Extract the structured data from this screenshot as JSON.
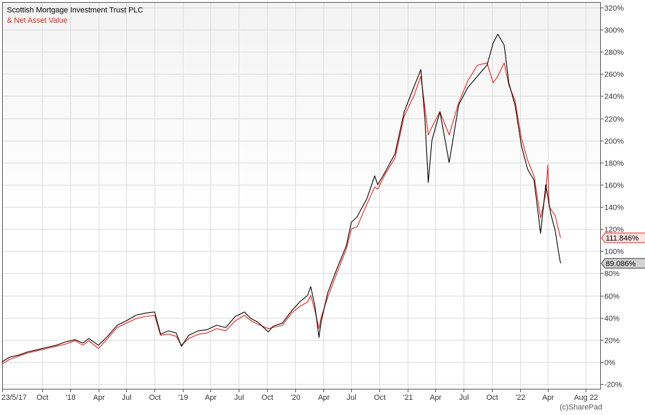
{
  "chart_data": {
    "type": "line",
    "title": "Scottish Mortgage Investment Trust PLC",
    "subtitle": "& Net Asset Value",
    "copyright": "(c)SharePad",
    "ylim": [
      -25,
      325
    ],
    "yticks": [
      -20,
      0,
      20,
      40,
      60,
      80,
      100,
      120,
      140,
      160,
      180,
      200,
      220,
      240,
      260,
      280,
      300,
      320
    ],
    "ytick_labels": [
      "-20%",
      "0%",
      "20%",
      "40%",
      "60%",
      "80%",
      "100%",
      "120%",
      "140%",
      "160%",
      "180%",
      "200%",
      "220%",
      "240%",
      "260%",
      "280%",
      "300%",
      "320%"
    ],
    "xlim": [
      "2017-05-23",
      "2022-09-20"
    ],
    "xticks": [
      "2017-05-23",
      "2017-10-01",
      "2018-01-01",
      "2018-04-01",
      "2018-07-01",
      "2018-10-01",
      "2019-01-01",
      "2019-04-01",
      "2019-07-01",
      "2019-10-01",
      "2020-01-01",
      "2020-04-01",
      "2020-07-01",
      "2020-10-01",
      "2021-01-01",
      "2021-04-01",
      "2021-07-01",
      "2021-10-01",
      "2022-01-01",
      "2022-04-01",
      "2022-08-01"
    ],
    "xtick_labels": [
      "23/5/17",
      "Oct",
      "'18",
      "Apr",
      "Jul",
      "Oct",
      "'19",
      "Apr",
      "Jul",
      "Oct",
      "'20",
      "Apr",
      "Jul",
      "Oct",
      "'21",
      "Apr",
      "Jul",
      "Oct",
      "'22",
      "Apr",
      "Aug 22"
    ],
    "grid": true,
    "series": [
      {
        "name": "Scottish Mortgage Investment Trust PLC",
        "color": "#000000",
        "last_label": "89.086%",
        "points": [
          [
            "2017-05-23",
            0
          ],
          [
            "2017-06-15",
            4
          ],
          [
            "2017-07-15",
            6
          ],
          [
            "2017-08-15",
            9
          ],
          [
            "2017-09-15",
            11
          ],
          [
            "2017-10-15",
            13
          ],
          [
            "2017-11-15",
            15
          ],
          [
            "2017-12-15",
            18
          ],
          [
            "2018-01-15",
            20
          ],
          [
            "2018-02-10",
            17
          ],
          [
            "2018-03-01",
            21
          ],
          [
            "2018-04-01",
            15
          ],
          [
            "2018-05-01",
            23
          ],
          [
            "2018-06-01",
            33
          ],
          [
            "2018-07-01",
            37
          ],
          [
            "2018-08-01",
            42
          ],
          [
            "2018-09-01",
            44
          ],
          [
            "2018-10-01",
            45
          ],
          [
            "2018-10-20",
            25
          ],
          [
            "2018-11-15",
            28
          ],
          [
            "2018-12-10",
            26
          ],
          [
            "2018-12-27",
            14
          ],
          [
            "2019-01-20",
            24
          ],
          [
            "2019-02-20",
            28
          ],
          [
            "2019-03-20",
            29
          ],
          [
            "2019-04-20",
            33
          ],
          [
            "2019-05-20",
            31
          ],
          [
            "2019-06-20",
            41
          ],
          [
            "2019-07-20",
            45
          ],
          [
            "2019-08-10",
            39
          ],
          [
            "2019-09-01",
            36
          ],
          [
            "2019-10-05",
            27
          ],
          [
            "2019-10-20",
            32
          ],
          [
            "2019-11-20",
            35
          ],
          [
            "2019-12-20",
            46
          ],
          [
            "2020-01-15",
            54
          ],
          [
            "2020-02-10",
            60
          ],
          [
            "2020-02-20",
            68
          ],
          [
            "2020-03-05",
            50
          ],
          [
            "2020-03-18",
            22
          ],
          [
            "2020-03-25",
            36
          ],
          [
            "2020-04-15",
            62
          ],
          [
            "2020-05-15",
            84
          ],
          [
            "2020-06-15",
            105
          ],
          [
            "2020-07-01",
            126
          ],
          [
            "2020-07-20",
            131
          ],
          [
            "2020-08-20",
            147
          ],
          [
            "2020-09-15",
            168
          ],
          [
            "2020-09-25",
            160
          ],
          [
            "2020-10-20",
            172
          ],
          [
            "2020-11-20",
            188
          ],
          [
            "2020-12-20",
            226
          ],
          [
            "2021-01-20",
            248
          ],
          [
            "2021-02-12",
            264
          ],
          [
            "2021-02-25",
            220
          ],
          [
            "2021-03-08",
            162
          ],
          [
            "2021-03-20",
            200
          ],
          [
            "2021-04-15",
            226
          ],
          [
            "2021-05-15",
            180
          ],
          [
            "2021-06-15",
            232
          ],
          [
            "2021-07-15",
            248
          ],
          [
            "2021-08-15",
            258
          ],
          [
            "2021-09-15",
            268
          ],
          [
            "2021-10-05",
            288
          ],
          [
            "2021-10-20",
            296
          ],
          [
            "2021-11-10",
            286
          ],
          [
            "2021-11-25",
            252
          ],
          [
            "2021-12-15",
            232
          ],
          [
            "2022-01-05",
            195
          ],
          [
            "2022-01-25",
            174
          ],
          [
            "2022-02-15",
            164
          ],
          [
            "2022-03-08",
            116
          ],
          [
            "2022-03-25",
            160
          ],
          [
            "2022-04-10",
            134
          ],
          [
            "2022-04-25",
            118
          ],
          [
            "2022-05-05",
            100
          ],
          [
            "2022-05-12",
            89
          ]
        ]
      },
      {
        "name": "Net Asset Value",
        "color": "#e8201e",
        "last_label": "111.846%",
        "points": [
          [
            "2017-05-23",
            -2
          ],
          [
            "2017-06-15",
            2
          ],
          [
            "2017-07-15",
            5
          ],
          [
            "2017-08-15",
            8
          ],
          [
            "2017-09-15",
            10
          ],
          [
            "2017-10-15",
            12
          ],
          [
            "2017-11-15",
            14
          ],
          [
            "2017-12-15",
            16
          ],
          [
            "2018-01-15",
            19
          ],
          [
            "2018-02-10",
            15
          ],
          [
            "2018-03-01",
            19
          ],
          [
            "2018-04-01",
            12
          ],
          [
            "2018-05-01",
            21
          ],
          [
            "2018-06-01",
            31
          ],
          [
            "2018-07-01",
            35
          ],
          [
            "2018-08-01",
            39
          ],
          [
            "2018-09-01",
            41
          ],
          [
            "2018-10-01",
            42
          ],
          [
            "2018-10-20",
            24
          ],
          [
            "2018-11-15",
            25
          ],
          [
            "2018-12-10",
            23
          ],
          [
            "2018-12-27",
            15
          ],
          [
            "2019-01-20",
            21
          ],
          [
            "2019-02-20",
            25
          ],
          [
            "2019-03-20",
            26
          ],
          [
            "2019-04-20",
            30
          ],
          [
            "2019-05-20",
            28
          ],
          [
            "2019-06-20",
            37
          ],
          [
            "2019-07-20",
            42
          ],
          [
            "2019-08-10",
            37
          ],
          [
            "2019-09-01",
            34
          ],
          [
            "2019-10-05",
            30
          ],
          [
            "2019-10-20",
            31
          ],
          [
            "2019-11-20",
            33
          ],
          [
            "2019-12-20",
            44
          ],
          [
            "2020-01-15",
            50
          ],
          [
            "2020-02-10",
            54
          ],
          [
            "2020-02-20",
            60
          ],
          [
            "2020-03-05",
            46
          ],
          [
            "2020-03-18",
            30
          ],
          [
            "2020-03-25",
            40
          ],
          [
            "2020-04-15",
            58
          ],
          [
            "2020-05-15",
            80
          ],
          [
            "2020-06-15",
            102
          ],
          [
            "2020-07-01",
            120
          ],
          [
            "2020-07-20",
            122
          ],
          [
            "2020-08-20",
            142
          ],
          [
            "2020-09-15",
            158
          ],
          [
            "2020-09-25",
            156
          ],
          [
            "2020-10-20",
            170
          ],
          [
            "2020-11-20",
            184
          ],
          [
            "2020-12-20",
            222
          ],
          [
            "2021-01-20",
            240
          ],
          [
            "2021-02-12",
            258
          ],
          [
            "2021-02-25",
            230
          ],
          [
            "2021-03-08",
            205
          ],
          [
            "2021-03-20",
            212
          ],
          [
            "2021-04-15",
            226
          ],
          [
            "2021-05-15",
            205
          ],
          [
            "2021-06-15",
            234
          ],
          [
            "2021-07-15",
            254
          ],
          [
            "2021-08-15",
            268
          ],
          [
            "2021-09-15",
            270
          ],
          [
            "2021-10-05",
            252
          ],
          [
            "2021-10-20",
            258
          ],
          [
            "2021-11-10",
            270
          ],
          [
            "2021-11-25",
            250
          ],
          [
            "2021-12-15",
            236
          ],
          [
            "2022-01-05",
            202
          ],
          [
            "2022-01-25",
            182
          ],
          [
            "2022-02-15",
            168
          ],
          [
            "2022-03-08",
            130
          ],
          [
            "2022-03-25",
            152
          ],
          [
            "2022-04-01",
            178
          ],
          [
            "2022-04-05",
            140
          ],
          [
            "2022-04-25",
            132
          ],
          [
            "2022-05-05",
            120
          ],
          [
            "2022-05-12",
            112
          ]
        ]
      }
    ]
  }
}
